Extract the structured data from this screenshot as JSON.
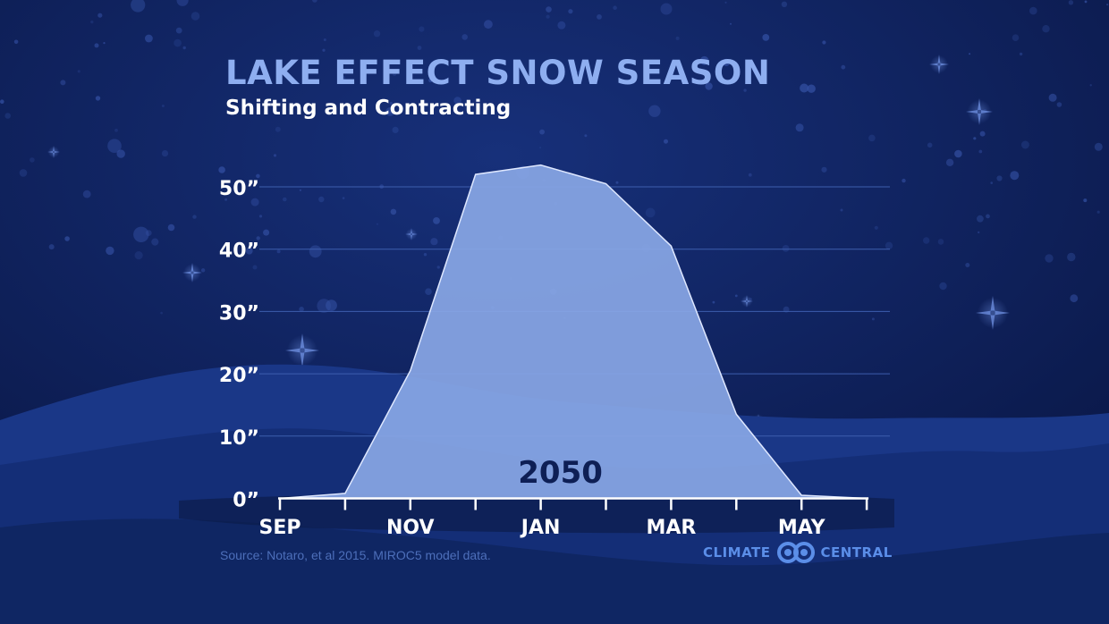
{
  "title": "LAKE EFFECT SNOW SEASON",
  "subtitle": "Shifting and Contracting",
  "source": "Source:  Notaro, et al 2015.  MIROC5 model data.",
  "logo": {
    "left": "CLIMATE",
    "right": "CENTRAL",
    "icon": "linked-rings-icon"
  },
  "colors": {
    "background": "#0c1d4f",
    "title": "#8eaef0",
    "area_fill": "#88a6e4",
    "area_stroke": "#dfe8ff",
    "grid": "#3d5eae",
    "axis_text": "#ffffff",
    "label_2050": "#0e1f55",
    "logo": "#5b8ee8"
  },
  "chart_data": {
    "type": "area",
    "series": [
      {
        "name": "2050",
        "x": [
          "Sep",
          "mid-Oct",
          "Nov",
          "mid-Dec",
          "Jan",
          "mid-Feb",
          "Mar",
          "mid-Apr",
          "May",
          "mid-Jun"
        ],
        "values": [
          0,
          0.8,
          20.5,
          52,
          53.5,
          50.5,
          40.5,
          13.5,
          0.5,
          0
        ]
      }
    ],
    "x_ticks": [
      "SEP",
      "",
      "NOV",
      "",
      "JAN",
      "",
      "MAR",
      "",
      "MAY",
      ""
    ],
    "y_ticks": [
      "0”",
      "10”",
      "20”",
      "30”",
      "40”",
      "50”"
    ],
    "y_tick_values": [
      0,
      10,
      20,
      30,
      40,
      50
    ],
    "ylim": [
      0,
      55
    ],
    "grid": true,
    "xlabel": "",
    "ylabel": ""
  }
}
